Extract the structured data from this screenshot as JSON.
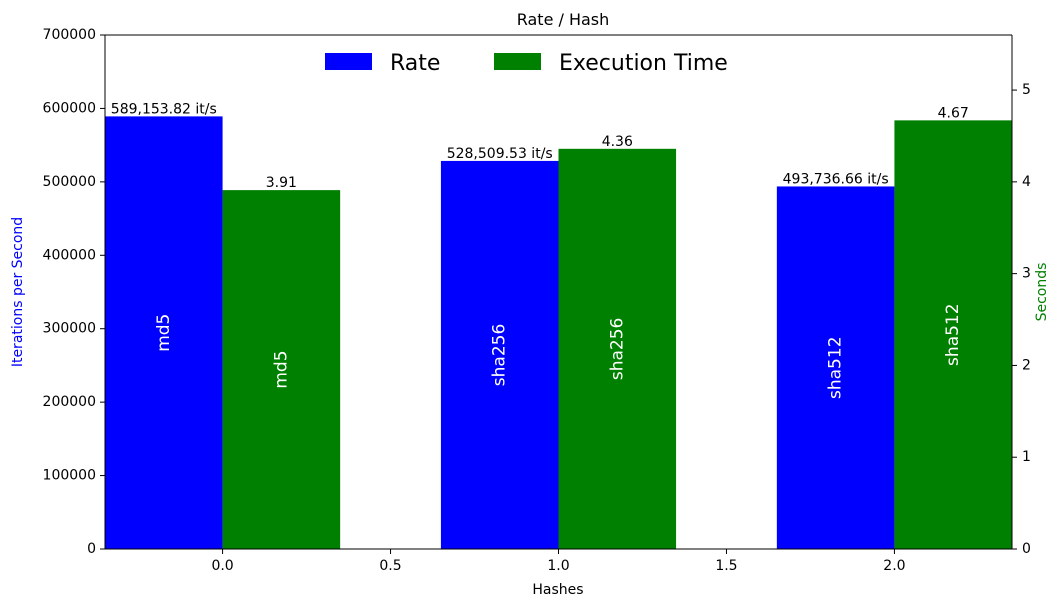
{
  "chart_data": {
    "type": "bar",
    "title": "Rate / Hash",
    "xlabel": "Hashes",
    "ylabel": "Iterations per Second",
    "y2label": "Seconds",
    "xlim": [
      -0.35,
      2.35
    ],
    "ylim": [
      0,
      700000
    ],
    "y2lim": [
      0,
      5.6
    ],
    "xticks": [
      "0.0",
      "0.5",
      "1.0",
      "1.5",
      "2.0"
    ],
    "xtick_values": [
      0.0,
      0.5,
      1.0,
      1.5,
      2.0
    ],
    "yticks": [
      "0",
      "100000",
      "200000",
      "300000",
      "400000",
      "500000",
      "600000",
      "700000"
    ],
    "ytick_values": [
      0,
      100000,
      200000,
      300000,
      400000,
      500000,
      600000,
      700000
    ],
    "y2ticks": [
      "0",
      "1",
      "2",
      "3",
      "4",
      "5"
    ],
    "y2tick_values": [
      0,
      1,
      2,
      3,
      4,
      5
    ],
    "categories": [
      "md5",
      "sha256",
      "sha512"
    ],
    "x": [
      0,
      1,
      2
    ],
    "bar_width": 0.35,
    "grid": false,
    "legend_position": "top-center",
    "series": [
      {
        "name": "Rate",
        "axis": "left",
        "color": "#0000ff",
        "values": [
          589153.82,
          528509.53,
          493736.66
        ],
        "labels": [
          "589,153.82 it/s",
          "528,509.53 it/s",
          "493,736.66 it/s"
        ]
      },
      {
        "name": "Execution Time",
        "axis": "right",
        "color": "#008000",
        "values": [
          3.91,
          4.36,
          4.67
        ],
        "labels": [
          "3.91",
          "4.36",
          "4.67"
        ]
      }
    ]
  },
  "colors": {
    "rate_axis_label": "#0000ff",
    "time_axis_label": "#008000"
  }
}
